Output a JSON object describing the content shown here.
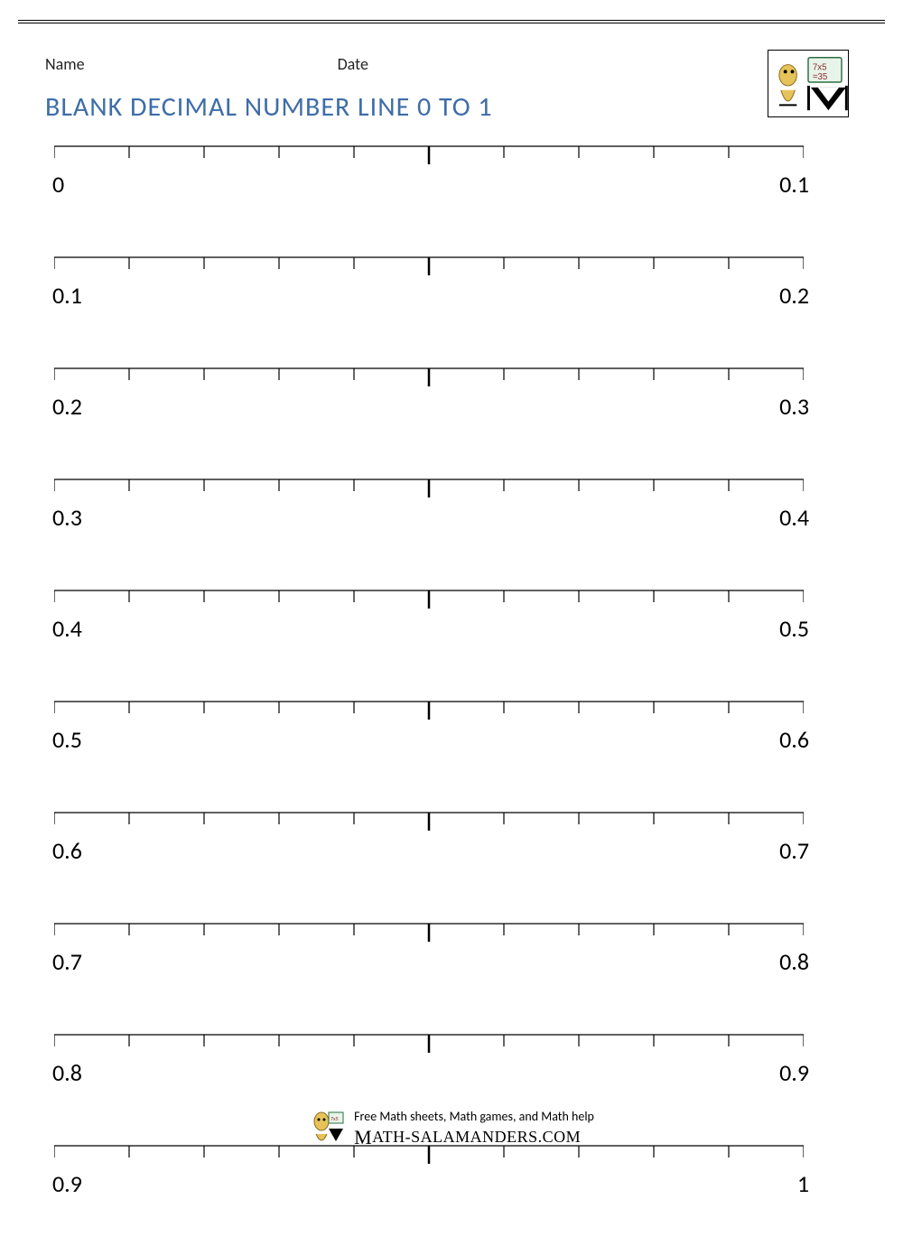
{
  "header": {
    "name_label": "Name",
    "date_label": "Date"
  },
  "title": {
    "text": "BLANK DECIMAL NUMBER LINE 0 TO 1",
    "color": "#3e6da8"
  },
  "number_lines": [
    {
      "start": "0",
      "end": "0.1"
    },
    {
      "start": "0.1",
      "end": "0.2"
    },
    {
      "start": "0.2",
      "end": "0.3"
    },
    {
      "start": "0.3",
      "end": "0.4"
    },
    {
      "start": "0.4",
      "end": "0.5"
    },
    {
      "start": "0.5",
      "end": "0.6"
    },
    {
      "start": "0.6",
      "end": "0.7"
    },
    {
      "start": "0.7",
      "end": "0.8"
    },
    {
      "start": "0.8",
      "end": "0.9"
    },
    {
      "start": "0.9",
      "end": "1"
    }
  ],
  "number_line_style": {
    "line_color": "#000000",
    "line_width": 1.2,
    "ticks": 11,
    "minor_tick_height": 13,
    "major_tick_height": 20,
    "mid_tick_width": 2.5
  },
  "footer": {
    "tagline": "Free Math sheets, Math games, and Math help",
    "url": "ATH-SALAMANDERS.COM"
  }
}
